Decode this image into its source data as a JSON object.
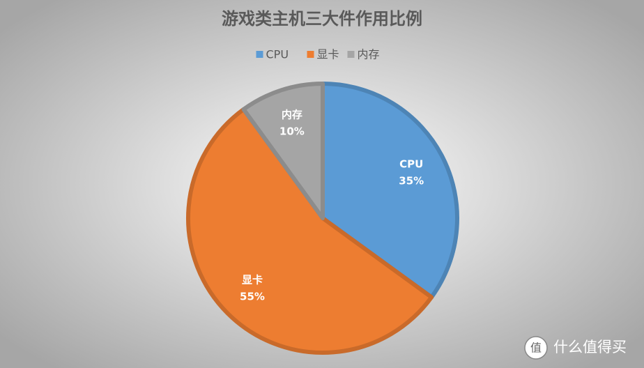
{
  "chart_data": {
    "type": "pie",
    "title": "游戏类主机三大件作用比例",
    "categories": [
      "CPU",
      "显卡",
      "内存"
    ],
    "series": [
      {
        "name": "CPU",
        "color": "#5b9bd5"
      },
      {
        "name": "显卡",
        "color": "#ed7d31"
      },
      {
        "name": "内存",
        "color": "#a5a5a5"
      }
    ],
    "values": [
      35,
      55,
      10
    ],
    "value_labels": [
      "35%",
      "55%",
      "10%"
    ],
    "legend": "top"
  },
  "watermark": "什么值得买"
}
